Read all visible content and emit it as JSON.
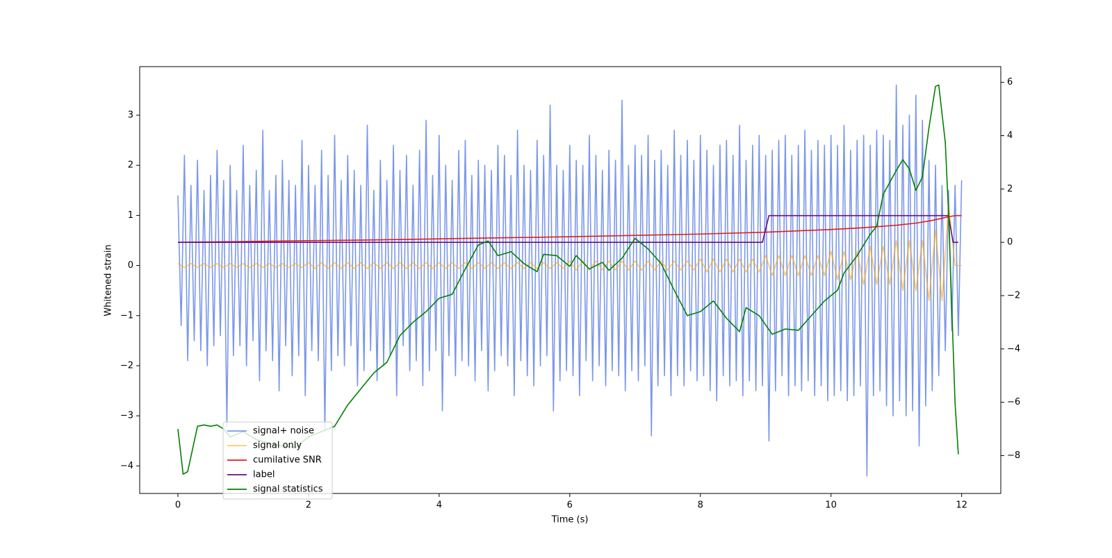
{
  "chart_data": {
    "type": "line",
    "xlabel": "Time (s)",
    "ylabel": "Whitened strain",
    "xlim": [
      -0.585,
      12.6
    ],
    "ylim": [
      -4.55,
      3.97
    ],
    "y2lim": [
      -9.42,
      6.59
    ],
    "xticks": [
      0,
      2,
      4,
      6,
      8,
      10,
      12
    ],
    "yticks": [
      {
        "value": -4,
        "label": "−4"
      },
      {
        "value": -3,
        "label": "−3"
      },
      {
        "value": -2,
        "label": "−2"
      },
      {
        "value": -1,
        "label": "−1"
      },
      0,
      1,
      2,
      3
    ],
    "y2ticks": [
      {
        "value": -8,
        "label": "−8"
      },
      {
        "value": -6,
        "label": "−6"
      },
      {
        "value": -4,
        "label": "−4"
      },
      {
        "value": -2,
        "label": "−2"
      },
      0,
      2,
      4,
      6
    ],
    "legend": "lower left",
    "series": [
      {
        "name": "signal+ noise",
        "color": "#6485e6",
        "opacity": 0.85,
        "x": [
          0,
          0.05,
          0.1,
          0.15,
          0.2,
          0.25,
          0.3,
          0.35,
          0.4,
          0.45,
          0.5,
          0.55,
          0.6,
          0.65,
          0.7,
          0.75,
          0.8,
          0.85,
          0.9,
          0.95,
          1,
          1.05,
          1.1,
          1.15,
          1.2,
          1.25,
          1.3,
          1.35,
          1.4,
          1.45,
          1.5,
          1.55,
          1.6,
          1.65,
          1.7,
          1.75,
          1.8,
          1.85,
          1.9,
          1.95,
          2,
          2.05,
          2.1,
          2.15,
          2.2,
          2.25,
          2.3,
          2.35,
          2.4,
          2.45,
          2.5,
          2.55,
          2.6,
          2.65,
          2.7,
          2.75,
          2.8,
          2.85,
          2.9,
          2.95,
          3,
          3.05,
          3.1,
          3.15,
          3.2,
          3.25,
          3.3,
          3.35,
          3.4,
          3.45,
          3.5,
          3.55,
          3.6,
          3.65,
          3.7,
          3.75,
          3.8,
          3.85,
          3.9,
          3.95,
          4,
          4.05,
          4.1,
          4.15,
          4.2,
          4.25,
          4.3,
          4.35,
          4.4,
          4.45,
          4.5,
          4.55,
          4.6,
          4.65,
          4.7,
          4.75,
          4.8,
          4.85,
          4.9,
          4.95,
          5,
          5.05,
          5.1,
          5.15,
          5.2,
          5.25,
          5.3,
          5.35,
          5.4,
          5.45,
          5.5,
          5.55,
          5.6,
          5.65,
          5.7,
          5.75,
          5.8,
          5.85,
          5.9,
          5.95,
          6,
          6.05,
          6.1,
          6.15,
          6.2,
          6.25,
          6.3,
          6.35,
          6.4,
          6.45,
          6.5,
          6.55,
          6.6,
          6.65,
          6.7,
          6.75,
          6.8,
          6.85,
          6.9,
          6.95,
          7,
          7.05,
          7.1,
          7.15,
          7.2,
          7.25,
          7.3,
          7.35,
          7.4,
          7.45,
          7.5,
          7.55,
          7.6,
          7.65,
          7.7,
          7.75,
          7.8,
          7.85,
          7.9,
          7.95,
          8,
          8.05,
          8.1,
          8.15,
          8.2,
          8.25,
          8.3,
          8.35,
          8.4,
          8.45,
          8.5,
          8.55,
          8.6,
          8.65,
          8.7,
          8.75,
          8.8,
          8.85,
          8.9,
          8.95,
          9,
          9.05,
          9.1,
          9.15,
          9.2,
          9.25,
          9.3,
          9.35,
          9.4,
          9.45,
          9.5,
          9.55,
          9.6,
          9.65,
          9.7,
          9.75,
          9.8,
          9.85,
          9.9,
          9.95,
          10,
          10.05,
          10.1,
          10.15,
          10.2,
          10.25,
          10.3,
          10.35,
          10.4,
          10.45,
          10.5,
          10.55,
          10.6,
          10.65,
          10.7,
          10.75,
          10.8,
          10.85,
          10.9,
          10.95,
          11,
          11.05,
          11.1,
          11.15,
          11.2,
          11.25,
          11.3,
          11.35,
          11.4,
          11.45,
          11.5,
          11.55,
          11.6,
          11.65,
          11.7,
          11.75,
          11.8,
          11.85,
          11.9,
          11.95,
          12
        ],
        "values": [
          1.4,
          -1.2,
          2.2,
          -1.9,
          1.6,
          -1.5,
          2.1,
          -1.7,
          1.5,
          -2.0,
          1.8,
          -1.6,
          2.3,
          -1.4,
          1.7,
          -3.2,
          2.0,
          -1.8,
          1.5,
          -1.6,
          2.4,
          -2.0,
          1.6,
          -1.5,
          1.9,
          -2.3,
          2.7,
          -1.7,
          1.5,
          -1.9,
          1.8,
          -2.5,
          2.1,
          -1.6,
          1.7,
          -2.2,
          1.6,
          -1.8,
          2.5,
          -2.6,
          2.0,
          -1.7,
          1.6,
          -1.9,
          2.3,
          -3.3,
          1.8,
          -2.1,
          2.6,
          -1.8,
          1.7,
          -2.0,
          2.2,
          -1.6,
          1.9,
          -2.4,
          1.6,
          -2.1,
          2.8,
          -1.7,
          1.5,
          -2.3,
          2.1,
          -2.0,
          1.7,
          -1.8,
          2.4,
          -2.6,
          1.9,
          -1.6,
          2.2,
          -2.1,
          1.6,
          -1.9,
          2.3,
          -2.4,
          2.9,
          -2.1,
          1.8,
          -1.7,
          2.6,
          -2.9,
          2.0,
          -1.8,
          1.7,
          -2.2,
          2.3,
          -1.9,
          2.5,
          -2.0,
          1.8,
          -2.3,
          2.1,
          -1.7,
          2.0,
          -2.5,
          1.9,
          -2.1,
          2.4,
          -1.8,
          2.2,
          -2.0,
          1.8,
          -2.6,
          2.7,
          -1.9,
          2.0,
          -2.2,
          1.9,
          -2.4,
          2.5,
          -2.0,
          2.2,
          -1.8,
          3.2,
          -2.9,
          2.0,
          -2.3,
          1.9,
          -2.1,
          2.4,
          -2.2,
          2.1,
          -2.6,
          2.0,
          -1.9,
          2.6,
          -2.3,
          2.2,
          -2.0,
          1.9,
          -2.4,
          2.3,
          -2.1,
          2.1,
          -2.2,
          3.3,
          -2.5,
          2.0,
          -2.1,
          2.4,
          -2.3,
          2.2,
          -2.0,
          2.6,
          -3.4,
          2.1,
          -2.4,
          2.3,
          -2.2,
          2.0,
          -2.6,
          2.7,
          -2.2,
          2.2,
          -2.4,
          2.5,
          -2.1,
          2.1,
          -2.3,
          2.6,
          -2.2,
          2.3,
          -2.5,
          2.0,
          -2.7,
          2.4,
          -2.2,
          2.5,
          -2.4,
          2.2,
          -2.3,
          2.8,
          -2.6,
          2.1,
          -2.3,
          2.4,
          -2.5,
          2.6,
          -2.4,
          2.2,
          -3.5,
          2.3,
          -2.5,
          2.5,
          -2.2,
          2.6,
          -2.6,
          2.2,
          -2.4,
          2.4,
          -2.5,
          2.7,
          -2.3,
          2.3,
          -2.6,
          2.5,
          -2.4,
          2.4,
          -2.7,
          2.6,
          -2.6,
          2.4,
          -2.5,
          2.8,
          -2.7,
          2.3,
          -2.6,
          2.5,
          -2.4,
          2.6,
          -4.2,
          2.4,
          -2.6,
          2.7,
          -2.5,
          2.6,
          -2.8,
          2.5,
          -3.0,
          3.6,
          -2.7,
          2.8,
          -3.0,
          3.0,
          -2.9,
          3.4,
          -3.6,
          2.9,
          -2.8,
          2.1,
          -2.5,
          2.0,
          -2.2,
          1.6,
          -1.7,
          1.5,
          -1.3,
          1.6,
          -1.4,
          1.7
        ]
      },
      {
        "name": "signal only",
        "color": "orange",
        "opacity": 0.6,
        "x": [
          0,
          0.1,
          0.2,
          0.3,
          0.4,
          0.5,
          0.6,
          0.7,
          0.8,
          0.9,
          1,
          1.1,
          1.2,
          1.3,
          1.4,
          1.5,
          1.6,
          1.7,
          1.8,
          1.9,
          2,
          2.1,
          2.2,
          2.3,
          2.4,
          2.5,
          2.6,
          2.7,
          2.8,
          2.9,
          3,
          3.1,
          3.2,
          3.3,
          3.4,
          3.5,
          3.6,
          3.7,
          3.8,
          3.9,
          4,
          4.1,
          4.2,
          4.3,
          4.4,
          4.5,
          4.6,
          4.7,
          4.8,
          4.9,
          5,
          5.1,
          5.2,
          5.3,
          5.4,
          5.5,
          5.6,
          5.7,
          5.8,
          5.9,
          6,
          6.1,
          6.2,
          6.3,
          6.4,
          6.5,
          6.6,
          6.7,
          6.8,
          6.9,
          7,
          7.1,
          7.2,
          7.3,
          7.4,
          7.5,
          7.6,
          7.7,
          7.8,
          7.9,
          8,
          8.1,
          8.2,
          8.3,
          8.4,
          8.5,
          8.6,
          8.7,
          8.8,
          8.9,
          9,
          9.1,
          9.2,
          9.3,
          9.4,
          9.5,
          9.6,
          9.7,
          9.8,
          9.9,
          10,
          10.1,
          10.2,
          10.3,
          10.4,
          10.5,
          10.6,
          10.7,
          10.8,
          10.9,
          11,
          11.1,
          11.2,
          11.3,
          11.4,
          11.5,
          11.6,
          11.7,
          11.8,
          11.9,
          12
        ],
        "values": [
          0.04,
          -0.04,
          0.04,
          -0.04,
          0.04,
          -0.04,
          0.04,
          -0.04,
          0.04,
          -0.04,
          0.04,
          -0.04,
          0.04,
          -0.04,
          0.04,
          -0.04,
          0.04,
          -0.04,
          0.04,
          -0.04,
          0.06,
          -0.06,
          0.06,
          -0.06,
          0.06,
          -0.06,
          0.06,
          -0.06,
          0.06,
          -0.06,
          0.06,
          -0.06,
          0.06,
          -0.06,
          0.06,
          -0.06,
          0.06,
          -0.06,
          0.06,
          -0.06,
          0.06,
          -0.06,
          0.06,
          -0.06,
          0.06,
          -0.06,
          0.06,
          -0.06,
          0.06,
          -0.06,
          0.06,
          -0.06,
          0.06,
          -0.06,
          0.06,
          -0.06,
          0.06,
          -0.06,
          0.06,
          -0.06,
          0.09,
          -0.09,
          0.09,
          -0.09,
          0.09,
          -0.09,
          0.09,
          -0.09,
          0.09,
          -0.09,
          0.09,
          -0.09,
          0.09,
          -0.09,
          0.09,
          -0.09,
          0.09,
          -0.09,
          0.09,
          -0.09,
          0.13,
          -0.13,
          0.13,
          -0.13,
          0.13,
          -0.13,
          0.13,
          -0.13,
          0.13,
          -0.13,
          0.2,
          -0.2,
          0.2,
          -0.2,
          0.2,
          -0.2,
          0.2,
          -0.2,
          0.2,
          -0.2,
          0.28,
          -0.28,
          0.28,
          -0.28,
          0.28,
          -0.38,
          0.38,
          -0.38,
          0.38,
          -0.38,
          0.5,
          -0.5,
          0.5,
          -0.5,
          0.5,
          -0.7,
          0.7,
          -0.7,
          1.2,
          0,
          0
        ]
      },
      {
        "name": "cumilative SNR",
        "color": "#e41a1c",
        "axis": "y2",
        "x": [
          0,
          1,
          2,
          3,
          4,
          5,
          6,
          7,
          8,
          9,
          10,
          10.5,
          11,
          11.3,
          11.5,
          11.7,
          11.8,
          11.9,
          12
        ],
        "values": [
          0,
          0.03,
          0.06,
          0.09,
          0.13,
          0.17,
          0.21,
          0.26,
          0.31,
          0.38,
          0.48,
          0.55,
          0.64,
          0.72,
          0.8,
          0.9,
          0.96,
          1,
          1
        ]
      },
      {
        "name": "label",
        "color": "#6a0d83",
        "axis": "y2",
        "x": [
          0,
          8.95,
          9.05,
          11.8,
          11.87,
          11.95
        ],
        "values": [
          0,
          0,
          1,
          1,
          0,
          0
        ]
      },
      {
        "name": "signal statistics",
        "color": "#008000",
        "axis": "y2",
        "x": [
          0,
          0.08,
          0.15,
          0.3,
          0.4,
          0.5,
          0.6,
          0.7,
          0.8,
          1.0,
          1.2,
          1.5,
          1.8,
          2.0,
          2.2,
          2.4,
          2.6,
          2.8,
          3.0,
          3.2,
          3.4,
          3.6,
          3.8,
          4.0,
          4.2,
          4.4,
          4.6,
          4.75,
          4.9,
          5.1,
          5.3,
          5.5,
          5.6,
          5.8,
          6.0,
          6.1,
          6.3,
          6.5,
          6.6,
          6.8,
          7.0,
          7.2,
          7.4,
          7.6,
          7.8,
          8.0,
          8.2,
          8.4,
          8.6,
          8.7,
          8.9,
          9.1,
          9.3,
          9.5,
          9.7,
          9.9,
          10.1,
          10.2,
          10.4,
          10.6,
          10.7,
          10.8,
          11.0,
          11.1,
          11.2,
          11.3,
          11.4,
          11.5,
          11.6,
          11.65,
          11.75,
          11.8,
          11.9,
          11.95
        ],
        "values": [
          -7.0,
          -8.7,
          -8.6,
          -6.9,
          -6.85,
          -6.9,
          -6.85,
          -7.0,
          -7.3,
          -7.1,
          -7.4,
          -7.6,
          -7.7,
          -7.3,
          -7.1,
          -6.9,
          -6.1,
          -5.5,
          -4.9,
          -4.5,
          -3.5,
          -3.0,
          -2.6,
          -2.1,
          -1.95,
          -1.0,
          -0.1,
          0.05,
          -0.5,
          -0.35,
          -0.8,
          -1.1,
          -0.45,
          -0.5,
          -0.9,
          -0.5,
          -1.0,
          -0.75,
          -1.05,
          -0.6,
          0.15,
          -0.25,
          -0.8,
          -1.8,
          -2.75,
          -2.6,
          -2.2,
          -2.85,
          -3.35,
          -2.45,
          -2.75,
          -3.45,
          -3.25,
          -3.3,
          -2.75,
          -2.2,
          -1.8,
          -1.15,
          -0.5,
          0.3,
          0.6,
          1.8,
          2.7,
          3.1,
          2.75,
          1.95,
          2.45,
          4.3,
          5.85,
          5.9,
          3.75,
          1.1,
          -6.05,
          -7.95
        ]
      }
    ]
  }
}
